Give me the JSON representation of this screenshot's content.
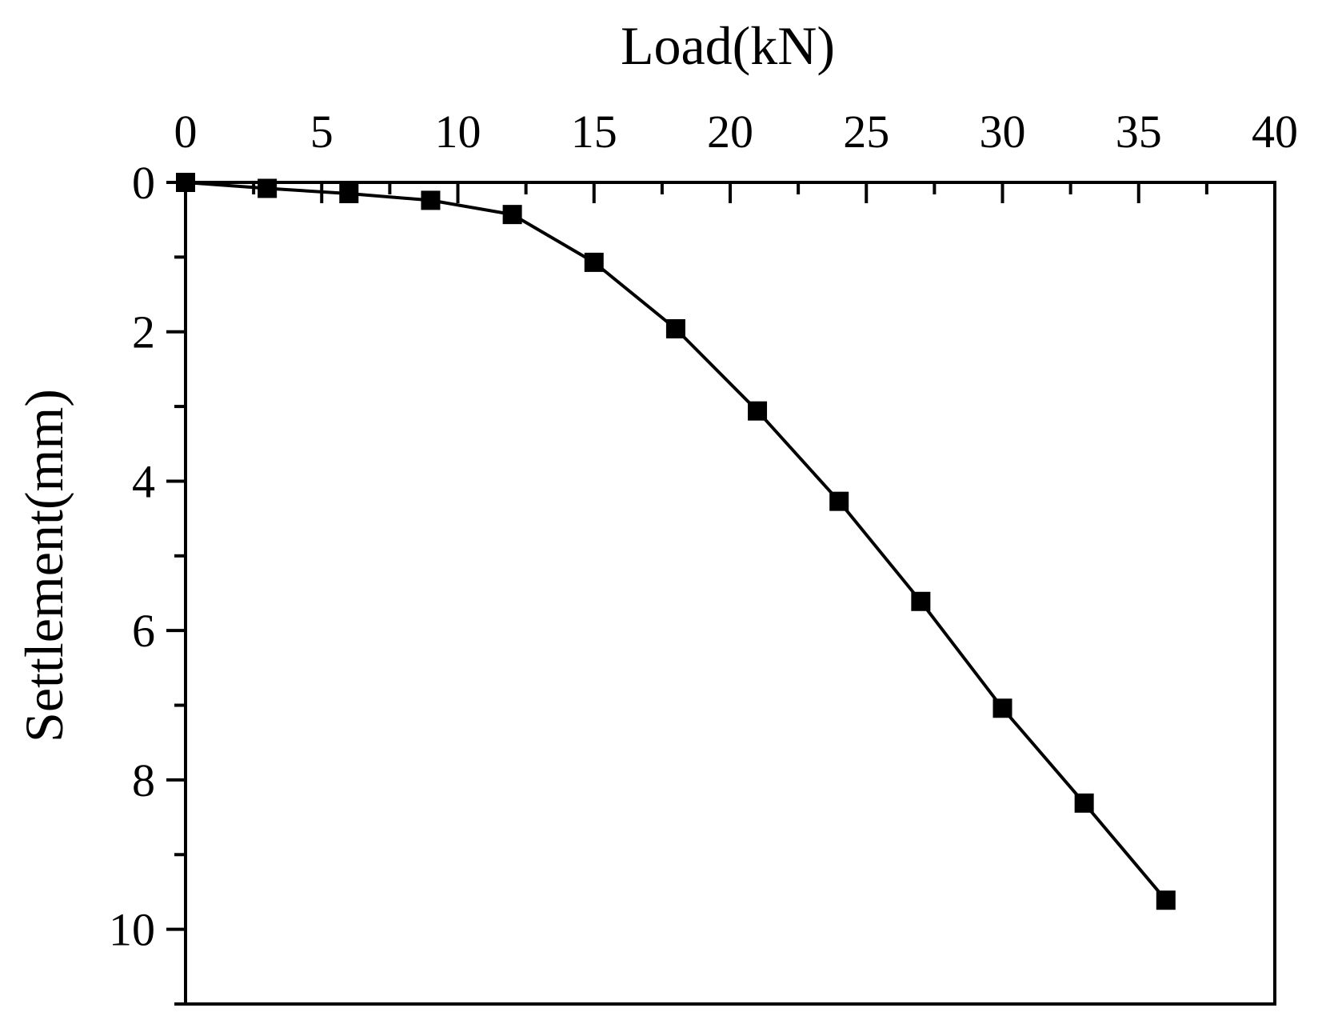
{
  "chart_data": {
    "type": "line",
    "xlabel": "Load(kN)",
    "ylabel": "Settlement(mm)",
    "x_axis_position": "top",
    "y_axis_inverted": true,
    "xlim": [
      0,
      40
    ],
    "ylim": [
      0,
      11
    ],
    "xticks": [
      0,
      5,
      10,
      15,
      20,
      25,
      30,
      35,
      40
    ],
    "xtick_labels": [
      "0",
      "5",
      "10",
      "15",
      "20",
      "25",
      "30",
      "35",
      "40"
    ],
    "xminor_step": 2.5,
    "yticks": [
      0,
      2,
      4,
      6,
      8,
      10
    ],
    "ytick_labels": [
      "0",
      "2",
      "4",
      "6",
      "8",
      "10"
    ],
    "yminor_step": 1,
    "grid": false,
    "legend": "none",
    "marker": "square",
    "series_color": "#000000",
    "series": [
      {
        "x": [
          0,
          3,
          6,
          9,
          12,
          15,
          18,
          21,
          24,
          27,
          30,
          33,
          36
        ],
        "y": [
          0,
          0.08,
          0.15,
          0.24,
          0.43,
          1.07,
          1.96,
          3.06,
          4.27,
          5.61,
          7.04,
          8.31,
          9.61
        ]
      }
    ]
  }
}
